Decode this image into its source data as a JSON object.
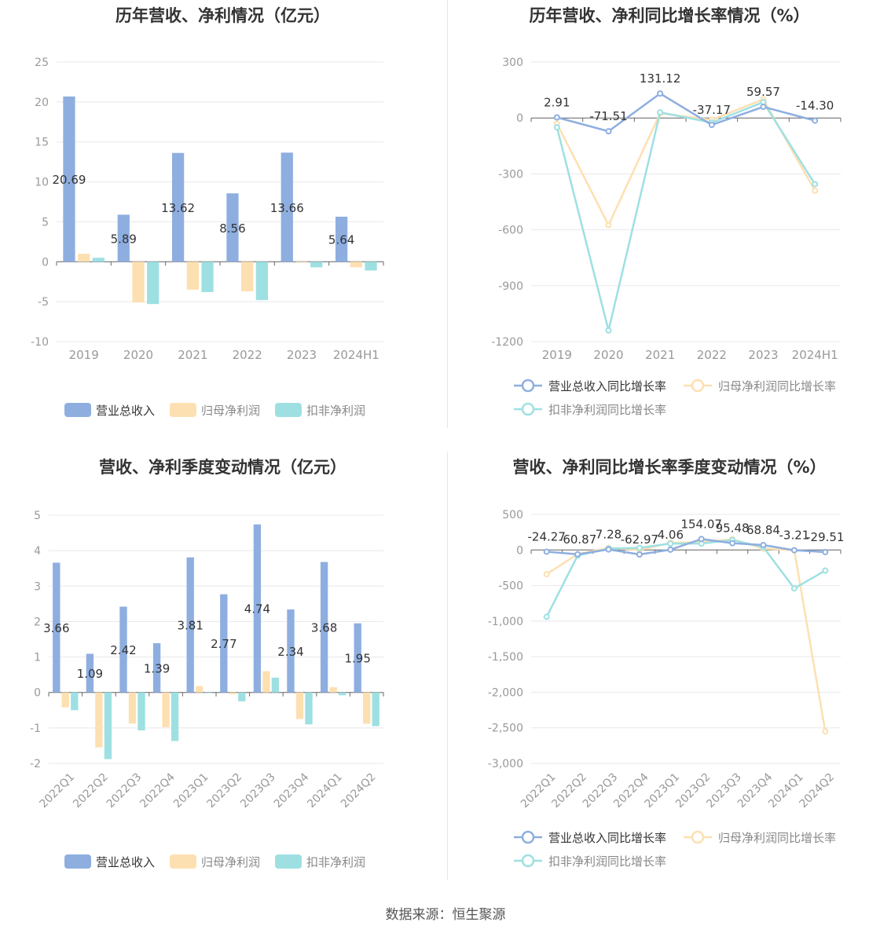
{
  "source_label": "数据来源：恒生聚源",
  "colors": {
    "revenue": "#8eaee0",
    "net_profit": "#fde0b1",
    "deducted_profit": "#9ee0e2",
    "axis_text": "#999999",
    "grid": "#e8e8ee",
    "label_text": "#333333"
  },
  "chart_data": [
    {
      "type": "bar",
      "title": "历年营收、净利情况（亿元）",
      "categories": [
        "2019",
        "2020",
        "2021",
        "2022",
        "2023",
        "2024H1"
      ],
      "series": [
        {
          "name": "营业总收入",
          "values": [
            20.69,
            5.89,
            13.62,
            8.56,
            13.66,
            5.64
          ],
          "labels": [
            "20.69",
            "5.89",
            "13.62",
            "8.56",
            "13.66",
            "5.64"
          ]
        },
        {
          "name": "归母净利润",
          "values": [
            1.0,
            -5.1,
            -3.5,
            -3.7,
            -0.1,
            -0.7
          ]
        },
        {
          "name": "扣非净利润",
          "values": [
            0.5,
            -5.3,
            -3.8,
            -4.8,
            -0.7,
            -1.1
          ]
        }
      ],
      "ylim": [
        -10,
        25
      ],
      "yticks": [
        -10,
        -5,
        0,
        5,
        10,
        15,
        20,
        25
      ],
      "legend": "bottom",
      "grid": true
    },
    {
      "type": "line",
      "title": "历年营收、净利同比增长率情况（%）",
      "categories": [
        "2019",
        "2020",
        "2021",
        "2022",
        "2023",
        "2024H1"
      ],
      "series": [
        {
          "name": "营业总收入同比增长率",
          "values": [
            2.91,
            -71.51,
            131.12,
            -37.17,
            59.57,
            -14.3
          ],
          "labels": [
            "2.91",
            "-71.51",
            "131.12",
            "-37.17",
            "59.57",
            "-14.30"
          ]
        },
        {
          "name": "归母净利润同比增长率",
          "values": [
            -30,
            -575,
            25,
            -10,
            100,
            -390
          ]
        },
        {
          "name": "扣非净利润同比增长率",
          "values": [
            -50,
            -1140,
            30,
            -25,
            85,
            -355
          ]
        }
      ],
      "ylim": [
        -1200,
        300
      ],
      "yticks": [
        -1200,
        -900,
        -600,
        -300,
        0,
        300
      ],
      "legend": "bottom",
      "grid": true
    },
    {
      "type": "bar",
      "title": "营收、净利季度变动情况（亿元）",
      "categories": [
        "2022Q1",
        "2022Q2",
        "2022Q3",
        "2022Q4",
        "2023Q1",
        "2023Q2",
        "2023Q3",
        "2023Q4",
        "2024Q1",
        "2024Q2"
      ],
      "series": [
        {
          "name": "营业总收入",
          "values": [
            3.66,
            1.09,
            2.42,
            1.39,
            3.81,
            2.77,
            4.74,
            2.34,
            3.68,
            1.95
          ],
          "labels": [
            "3.66",
            "1.09",
            "2.42",
            "1.39",
            "3.81",
            "2.77",
            "4.74",
            "2.34",
            "3.68",
            "1.95"
          ]
        },
        {
          "name": "归母净利润",
          "values": [
            -0.42,
            -1.55,
            -0.88,
            -0.98,
            0.18,
            -0.05,
            0.6,
            -0.75,
            0.15,
            -0.88
          ]
        },
        {
          "name": "扣非净利润",
          "values": [
            -0.5,
            -1.88,
            -1.07,
            -1.37,
            -0.02,
            -0.25,
            0.42,
            -0.9,
            -0.08,
            -0.95
          ]
        }
      ],
      "ylim": [
        -2,
        5
      ],
      "yticks": [
        -2,
        -1,
        0,
        1,
        2,
        3,
        4,
        5
      ],
      "legend": "bottom",
      "grid": true
    },
    {
      "type": "line",
      "title": "营收、净利同比增长率季度变动情况（%）",
      "categories": [
        "2022Q1",
        "2022Q2",
        "2022Q3",
        "2022Q4",
        "2023Q1",
        "2023Q2",
        "2023Q3",
        "2023Q4",
        "2024Q1",
        "2024Q2"
      ],
      "series": [
        {
          "name": "营业总收入同比增长率",
          "values": [
            -24.27,
            -60.87,
            7.28,
            -62.97,
            4.06,
            154.07,
            95.48,
            68.84,
            -3.21,
            -29.51
          ],
          "labels": [
            "-24.27",
            "-60.87",
            "7.28",
            "-62.97",
            "4.06",
            "154.07",
            "95.48",
            "68.84",
            "-3.21",
            "-29.51"
          ]
        },
        {
          "name": "归母净利润同比增长率",
          "values": [
            -340,
            -60,
            30,
            0,
            100,
            110,
            150,
            20,
            -5,
            -2550
          ]
        },
        {
          "name": "扣非净利润同比增长率",
          "values": [
            -940,
            -80,
            20,
            30,
            90,
            90,
            140,
            40,
            -540,
            -290
          ]
        }
      ],
      "ylim": [
        -3000,
        500
      ],
      "yticks": [
        -3000,
        -2500,
        -2000,
        -1500,
        -1000,
        -500,
        0,
        500
      ],
      "ytick_labels": [
        "-3,000",
        "-2,500",
        "-2,000",
        "-1,500",
        "-1,000",
        "-500",
        "0",
        "500"
      ],
      "legend": "bottom",
      "grid": true
    }
  ]
}
